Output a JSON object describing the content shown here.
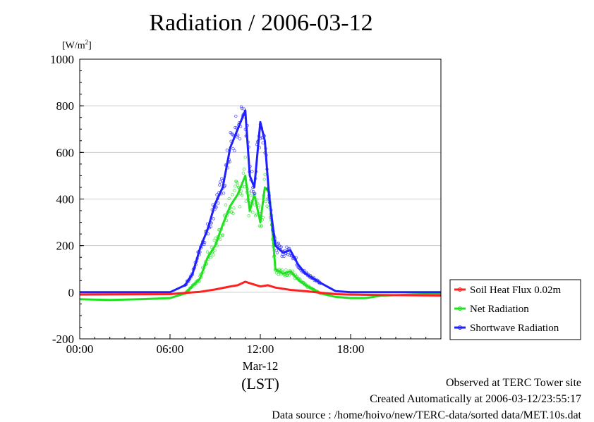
{
  "chart_data": {
    "type": "line",
    "title": "Radiation / 2006-03-12",
    "ylabel_unit": "[W/m",
    "ylabel_unit_sup": "2",
    "ylabel_unit_end": "]",
    "ylim": [
      -200,
      1000
    ],
    "yticks": [
      -200,
      0,
      200,
      400,
      600,
      800,
      1000
    ],
    "ytick_labels": [
      "-200",
      "0",
      "200",
      "400",
      "600",
      "800",
      "1000"
    ],
    "xlim_hours": [
      0,
      24
    ],
    "xticks_hours": [
      0,
      6,
      12,
      18
    ],
    "xtick_labels": [
      "00:00",
      "06:00",
      "12:00",
      "18:00"
    ],
    "xdate_label": "Mar-12",
    "xlabel": "(LST)",
    "grid": true,
    "legend_position": "right",
    "series": [
      {
        "name": "Soil Heat Flux 0.02m",
        "color": "#ff2020",
        "hours": [
          0,
          3,
          6,
          7,
          8,
          9,
          10,
          10.5,
          11,
          11.5,
          12,
          12.5,
          13,
          14,
          15,
          16,
          17,
          18,
          20,
          22,
          24
        ],
        "values": [
          -10,
          -9,
          -8,
          -3,
          2,
          12,
          25,
          30,
          45,
          35,
          25,
          30,
          20,
          10,
          5,
          -2,
          -8,
          -10,
          -12,
          -13,
          -14
        ]
      },
      {
        "name": "Net Radiation",
        "color": "#20e020",
        "hours": [
          0,
          2,
          4,
          6,
          7,
          8,
          8.5,
          9,
          9.5,
          10,
          10.5,
          11,
          11.3,
          11.6,
          12,
          12.3,
          12.6,
          13,
          13.5,
          14,
          14.5,
          15,
          16,
          17,
          18,
          19,
          20,
          22,
          24
        ],
        "values": [
          -30,
          -33,
          -30,
          -25,
          -5,
          60,
          150,
          200,
          290,
          370,
          420,
          500,
          350,
          420,
          300,
          450,
          430,
          100,
          80,
          90,
          55,
          30,
          -5,
          -20,
          -25,
          -25,
          -15,
          -10,
          -5
        ]
      },
      {
        "name": "Shortwave Radiation",
        "color": "#2020ff",
        "hours": [
          0,
          2,
          4,
          6,
          7,
          7.5,
          8,
          8.5,
          9,
          9.5,
          10,
          10.5,
          11,
          11.3,
          11.6,
          12,
          12.3,
          12.6,
          13,
          13.5,
          14,
          14.5,
          15,
          16,
          17,
          18,
          19,
          20,
          22,
          24
        ],
        "values": [
          0,
          0,
          0,
          0,
          30,
          80,
          190,
          270,
          380,
          450,
          620,
          700,
          780,
          500,
          450,
          730,
          650,
          400,
          200,
          170,
          180,
          120,
          80,
          40,
          5,
          0,
          0,
          0,
          0,
          0
        ]
      }
    ]
  },
  "footer": {
    "line1": "Observed at TERC Tower site",
    "line2": "Created Automatically at 2006-03-12/23:55:17",
    "line3": "Data source : /home/hoivo/new/TERC-data/sorted  data/MET.10s.dat"
  }
}
